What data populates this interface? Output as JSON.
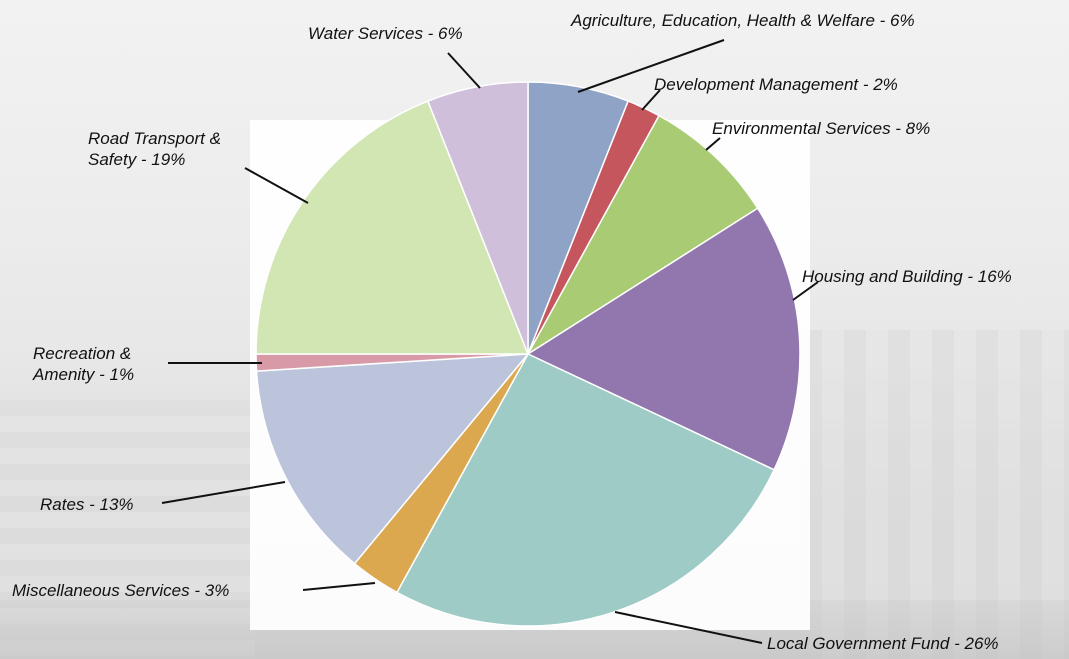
{
  "chart_data": {
    "type": "pie",
    "unit": "%",
    "slices": [
      {
        "label": "Agriculture, Education, Health & Welfare - 6%",
        "category": "Agriculture, Education, Health & Welfare",
        "value": 6,
        "color": "#8ea3c6"
      },
      {
        "label": "Development Management - 2%",
        "category": "Development Management",
        "value": 2,
        "color": "#c5565e"
      },
      {
        "label": "Environmental Services - 8%",
        "category": "Environmental Services",
        "value": 8,
        "color": "#a8cb73"
      },
      {
        "label": "Housing and Building - 16%",
        "category": "Housing and Building",
        "value": 16,
        "color": "#9277af"
      },
      {
        "label": "Local Government Fund - 26%",
        "category": "Local Government Fund",
        "value": 26,
        "color": "#9ecbc6"
      },
      {
        "label": "Miscellaneous Services - 3%",
        "category": "Miscellaneous Services",
        "value": 3,
        "color": "#dba84f"
      },
      {
        "label": "Rates - 13%",
        "category": "Rates",
        "value": 13,
        "color": "#bcc4dc"
      },
      {
        "label": "Recreation & Amenity - 1%",
        "category": "Recreation & Amenity",
        "value": 1,
        "color": "#d79aa6"
      },
      {
        "label": "Road Transport & Safety - 19%",
        "category": "Road Transport & Safety",
        "value": 19,
        "color": "#d2e6b3"
      },
      {
        "label": "Water Services - 6%",
        "category": "Water Services",
        "value": 6,
        "color": "#cfbfdb"
      }
    ]
  },
  "labels": {
    "agriculture": "Agriculture, Education, Health & Welfare - 6%",
    "development": "Development Management - 2%",
    "environmental": "Environmental Services - 8%",
    "housing": "Housing and Building - 16%",
    "lgf": "Local Government Fund - 26%",
    "misc": "Miscellaneous Services - 3%",
    "rates": "Rates - 13%",
    "recreation_line1": "Recreation &",
    "recreation_line2": "Amenity - 1%",
    "road_line1": "Road Transport &",
    "road_line2": "Safety - 19%",
    "water": "Water Services - 6%"
  }
}
